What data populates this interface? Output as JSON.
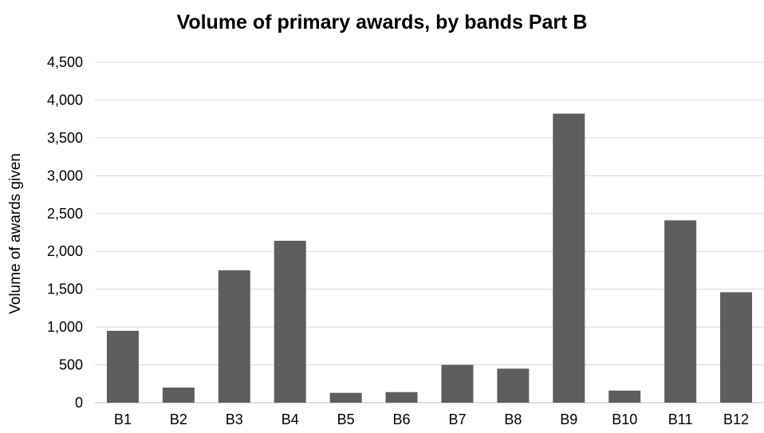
{
  "chart_data": {
    "type": "bar",
    "title": "Volume of primary awards, by bands Part B",
    "xlabel": "",
    "ylabel": "Volume of awards given",
    "categories": [
      "B1",
      "B2",
      "B3",
      "B4",
      "B5",
      "B6",
      "B7",
      "B8",
      "B9",
      "B10",
      "B11",
      "B12"
    ],
    "values": [
      950,
      200,
      1750,
      2140,
      130,
      140,
      500,
      450,
      3820,
      160,
      2410,
      1460
    ],
    "ylim": [
      0,
      4500
    ],
    "yticks": [
      0,
      500,
      1000,
      1500,
      2000,
      2500,
      3000,
      3500,
      4000,
      4500
    ],
    "ytick_labels": [
      "0",
      "500",
      "1,000",
      "1,500",
      "2,000",
      "2,500",
      "3,000",
      "3,500",
      "4,000",
      "4,500"
    ],
    "grid": true,
    "legend": "none",
    "colors": {
      "bar": "#5e5e5e",
      "grid": "#d9d9d9",
      "axis": "#bfbfbf"
    }
  }
}
